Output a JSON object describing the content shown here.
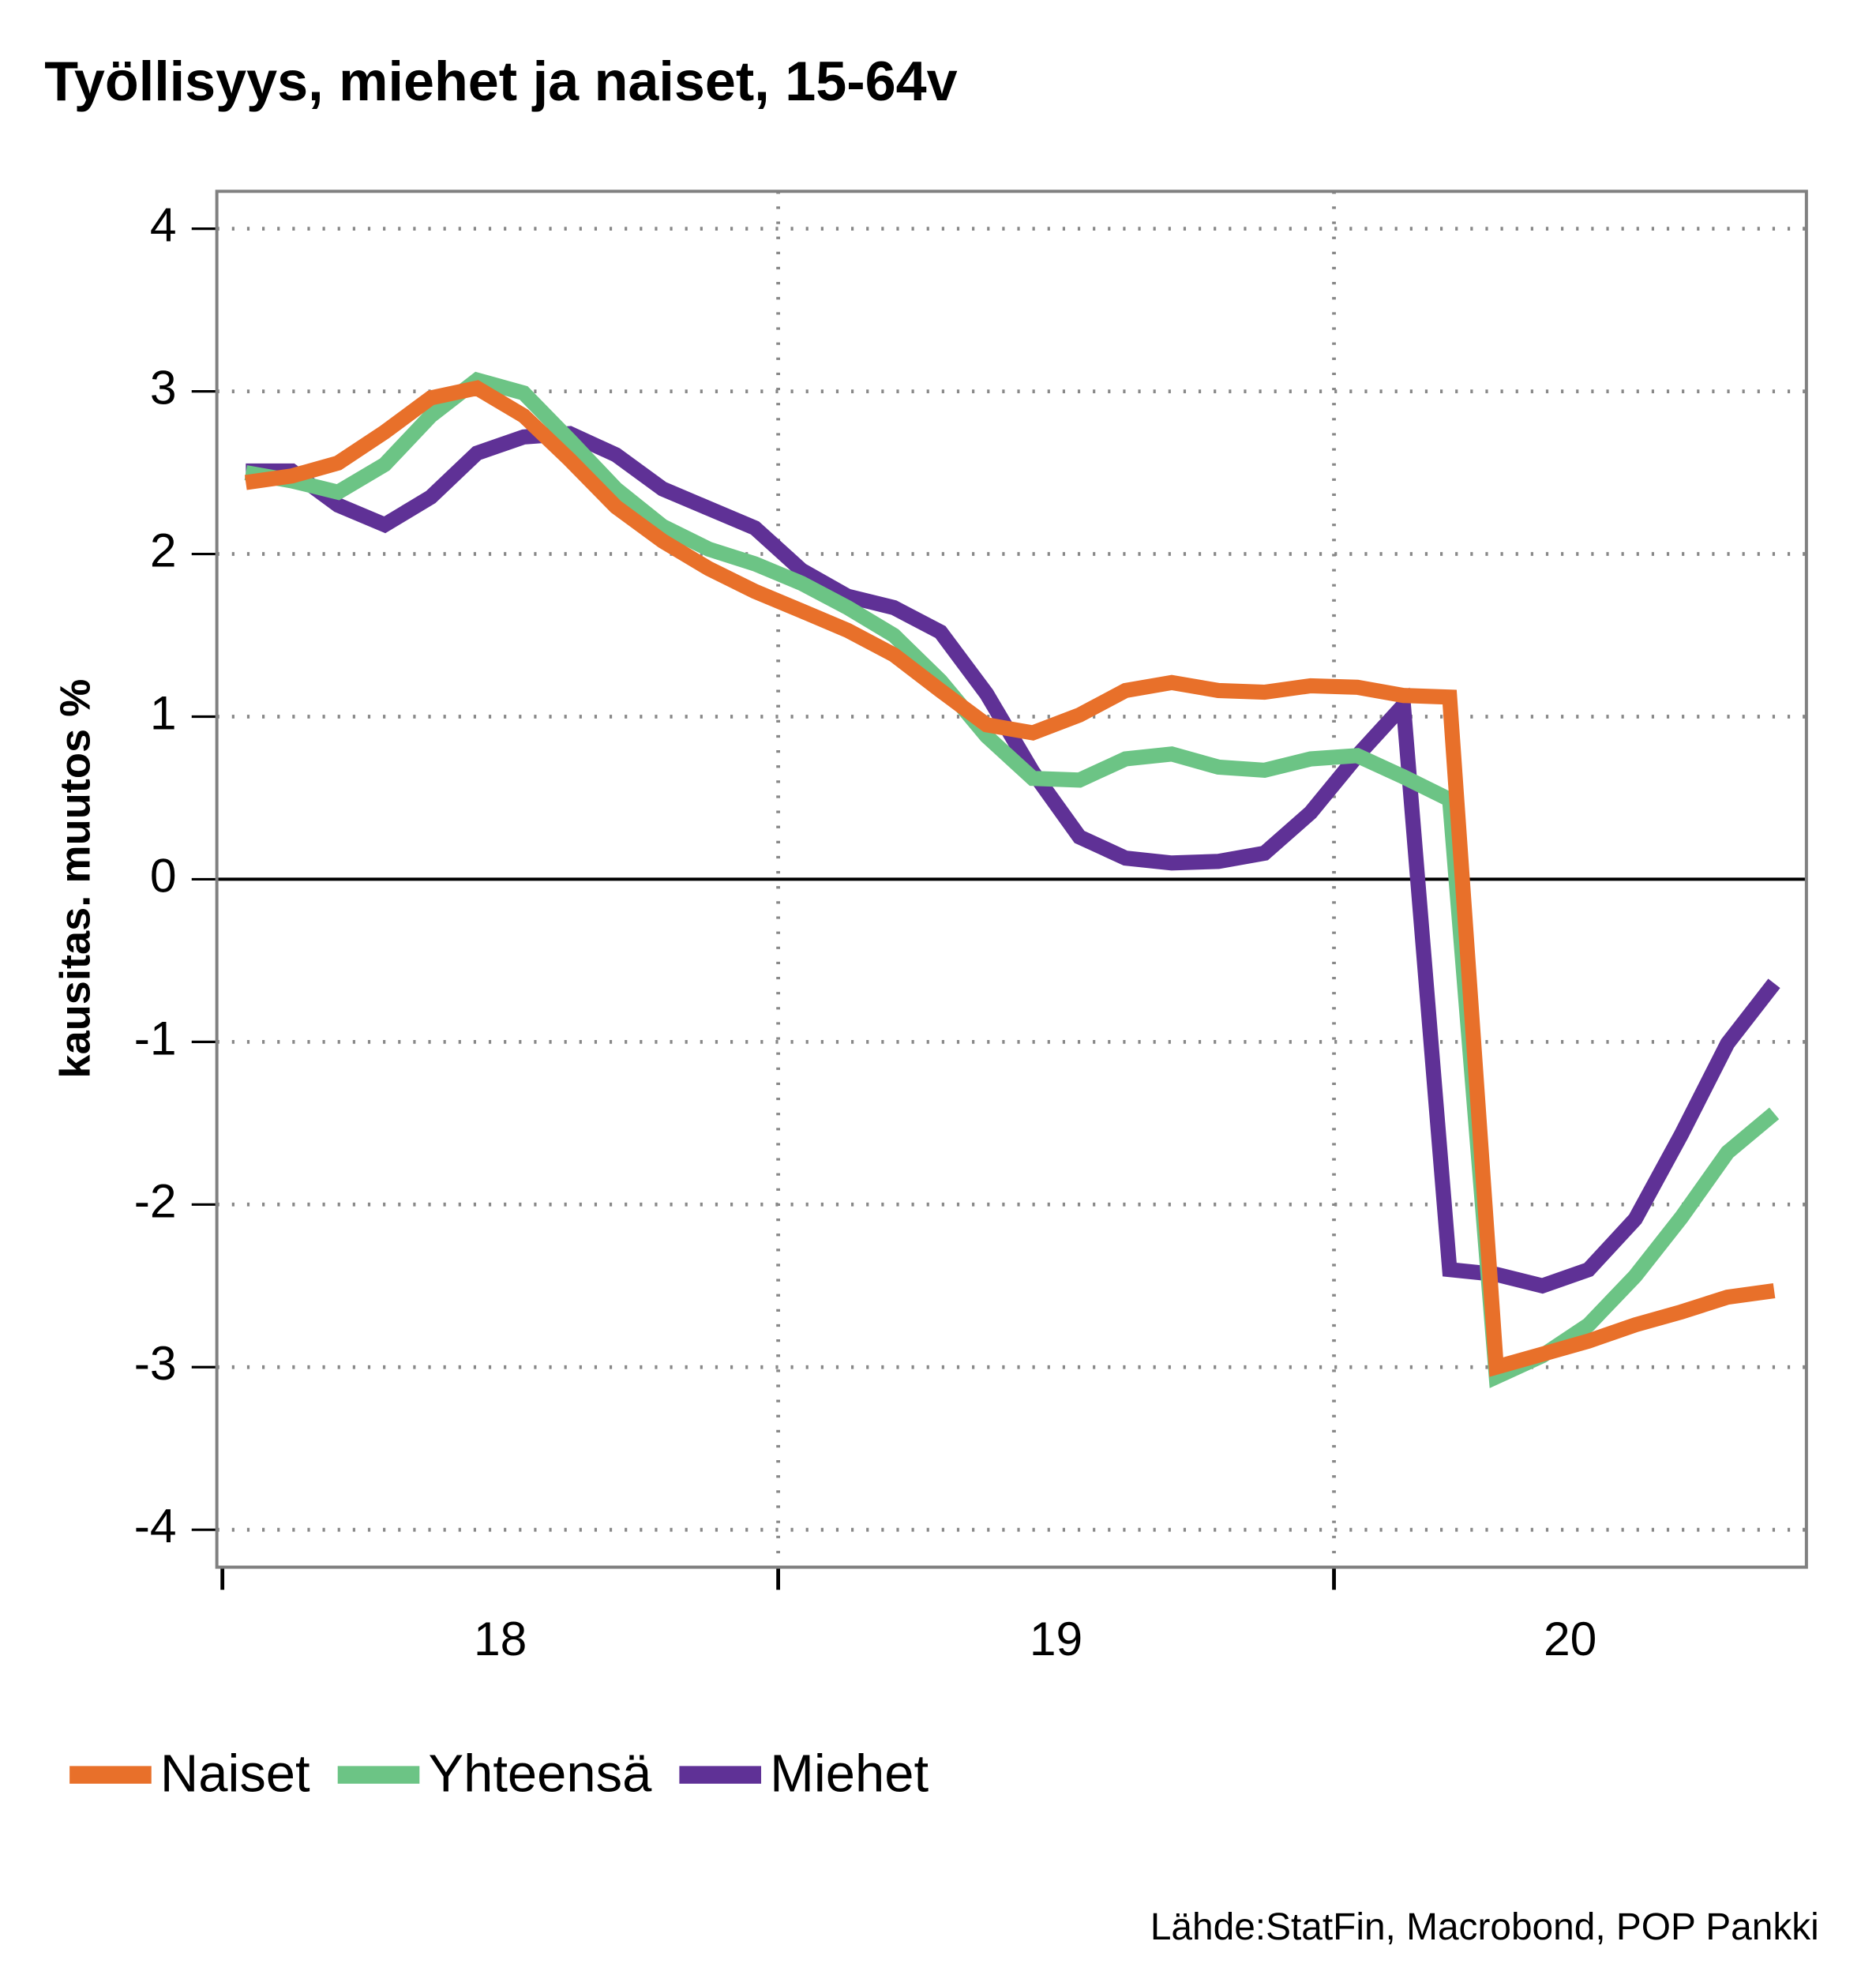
{
  "chart_data": {
    "type": "line",
    "title": "Työllisyys, miehet ja naiset, 15-64v",
    "y_label": "kausitas. muutos %",
    "source": "Lähde:StatFin, Macrobond, POP Pankki",
    "x": [
      18.042,
      18.125,
      18.208,
      18.292,
      18.375,
      18.458,
      18.542,
      18.625,
      18.708,
      18.792,
      18.875,
      18.958,
      19.042,
      19.125,
      19.208,
      19.292,
      19.375,
      19.458,
      19.542,
      19.625,
      19.708,
      19.792,
      19.875,
      19.958,
      20.042,
      20.125,
      20.208,
      20.292,
      20.375,
      20.458,
      20.542,
      20.625,
      20.708,
      20.792
    ],
    "xlim": [
      17.99,
      20.85
    ],
    "xticks": [
      18,
      19,
      20
    ],
    "ylim": [
      -4.23,
      4.23
    ],
    "yticks": [
      -4,
      -3,
      -2,
      -1,
      0,
      1,
      2,
      3,
      4
    ],
    "grid": true,
    "legend": "bottom",
    "series": [
      {
        "name": "Naiset",
        "color": "#e8702a",
        "values": [
          2.44,
          2.48,
          2.56,
          2.75,
          2.96,
          3.02,
          2.85,
          2.58,
          2.29,
          2.08,
          1.91,
          1.77,
          1.65,
          1.53,
          1.38,
          1.16,
          0.95,
          0.9,
          1.01,
          1.16,
          1.21,
          1.16,
          1.15,
          1.19,
          1.18,
          1.13,
          1.12,
          -3.0,
          -2.92,
          -2.84,
          -2.74,
          -2.66,
          -2.57,
          -2.53
        ]
      },
      {
        "name": "Yhteensä",
        "color": "#6cc485",
        "values": [
          2.5,
          2.45,
          2.38,
          2.55,
          2.85,
          3.07,
          2.99,
          2.7,
          2.4,
          2.17,
          2.03,
          1.94,
          1.82,
          1.67,
          1.5,
          1.22,
          0.88,
          0.62,
          0.61,
          0.74,
          0.77,
          0.69,
          0.67,
          0.74,
          0.76,
          0.63,
          0.49,
          -3.06,
          -2.93,
          -2.74,
          -2.44,
          -2.08,
          -1.68,
          -1.44
        ]
      },
      {
        "name": "Miehet",
        "color": "#5f3196",
        "values": [
          2.51,
          2.51,
          2.3,
          2.18,
          2.35,
          2.62,
          2.72,
          2.74,
          2.61,
          2.4,
          2.28,
          2.16,
          1.9,
          1.74,
          1.67,
          1.52,
          1.14,
          0.66,
          0.26,
          0.13,
          0.1,
          0.11,
          0.16,
          0.41,
          0.76,
          1.07,
          -2.4,
          -2.43,
          -2.5,
          -2.4,
          -2.09,
          -1.57,
          -1.01,
          -0.64
        ]
      }
    ]
  }
}
